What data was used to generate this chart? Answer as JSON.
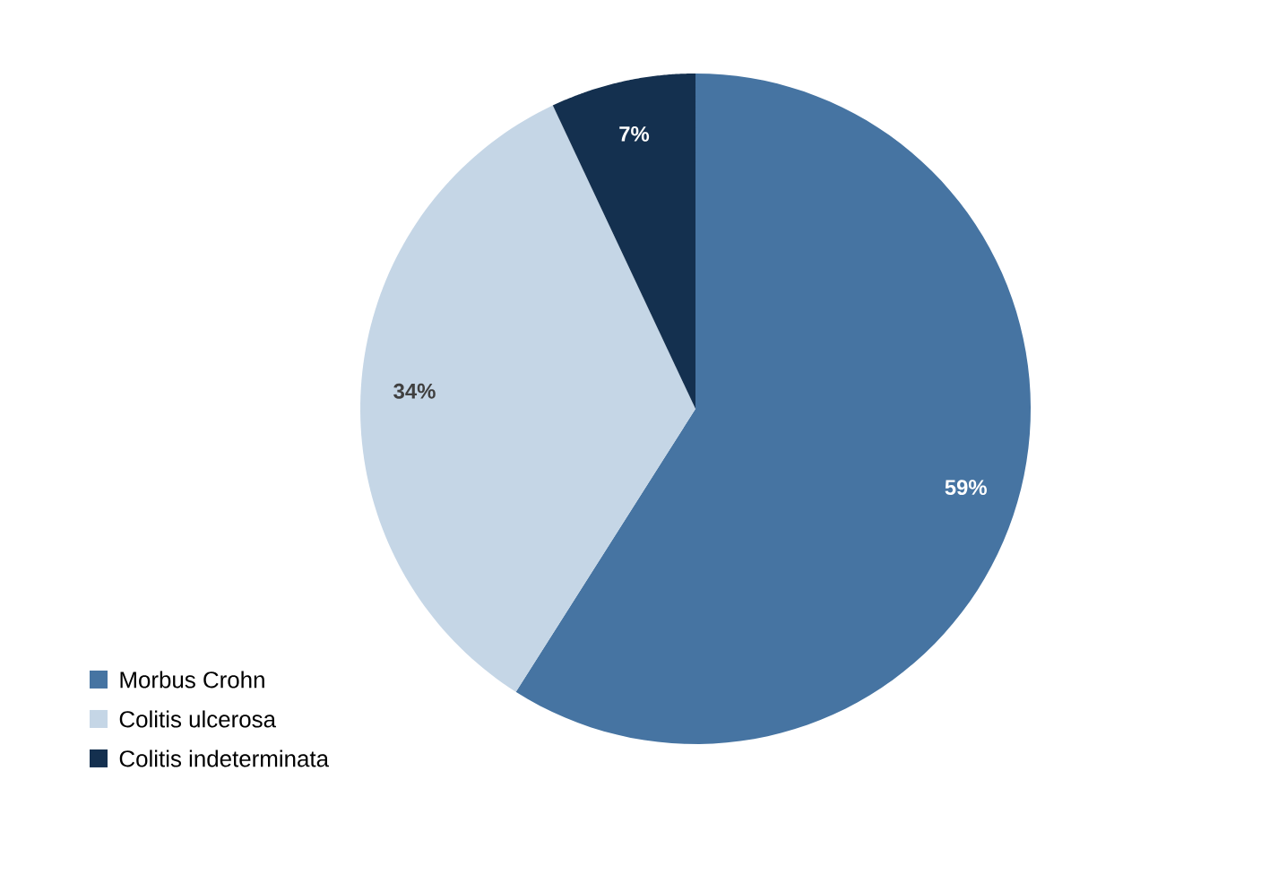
{
  "chart_data": {
    "type": "pie",
    "categories": [
      "Morbus Crohn",
      "Colitis ulcerosa",
      "Colitis indeterminata"
    ],
    "values": [
      59,
      34,
      7
    ],
    "value_labels": [
      "59%",
      "34%",
      "7%"
    ],
    "colors": [
      "#4674a2",
      "#c5d6e6",
      "#14304f"
    ],
    "legend": "bottom left"
  }
}
